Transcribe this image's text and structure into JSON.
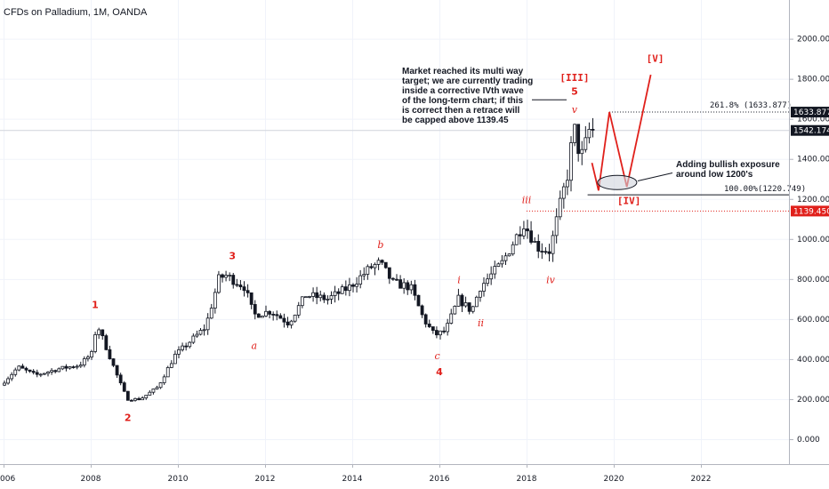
{
  "chart_data": {
    "type": "candlestick",
    "title": "CFDs on Palladium, 1M, OANDA",
    "ylim": [
      -250,
      2200
    ],
    "xlim": [
      2006,
      2025.9
    ],
    "y_ticks": [
      "2000.000",
      "1800.000",
      "1600.000",
      "1400.000",
      "1200.000",
      "1000.000",
      "800.000",
      "600.000",
      "400.000",
      "200.000",
      "0.000"
    ],
    "y_tick_values": [
      2000,
      1800,
      1600,
      1400,
      1200,
      1000,
      800,
      600,
      400,
      200,
      0
    ],
    "x_ticks": [
      "006",
      "2008",
      "2010",
      "2012",
      "2014",
      "2016",
      "2018",
      "2020",
      "2022"
    ],
    "x_tick_values": [
      2006,
      2008,
      2010,
      2012,
      2014,
      2016,
      2018,
      2020,
      2022
    ],
    "price_path": [
      [
        2006.0,
        270
      ],
      [
        2006.4,
        360
      ],
      [
        2006.8,
        320
      ],
      [
        2007.3,
        350
      ],
      [
        2007.8,
        370
      ],
      [
        2008.1,
        430
      ],
      [
        2008.2,
        580
      ],
      [
        2008.45,
        440
      ],
      [
        2008.7,
        300
      ],
      [
        2008.9,
        200
      ],
      [
        2009.2,
        200
      ],
      [
        2009.6,
        260
      ],
      [
        2010.0,
        420
      ],
      [
        2010.4,
        500
      ],
      [
        2010.7,
        560
      ],
      [
        2011.0,
        800
      ],
      [
        2011.15,
        820
      ],
      [
        2011.6,
        760
      ],
      [
        2011.8,
        620
      ],
      [
        2012.2,
        640
      ],
      [
        2012.6,
        580
      ],
      [
        2013.0,
        720
      ],
      [
        2013.5,
        700
      ],
      [
        2014.0,
        760
      ],
      [
        2014.5,
        860
      ],
      [
        2014.7,
        880
      ],
      [
        2015.0,
        780
      ],
      [
        2015.4,
        760
      ],
      [
        2015.7,
        600
      ],
      [
        2015.95,
        520
      ],
      [
        2016.2,
        540
      ],
      [
        2016.5,
        700
      ],
      [
        2016.8,
        640
      ],
      [
        2017.0,
        760
      ],
      [
        2017.5,
        880
      ],
      [
        2018.0,
        1080
      ],
      [
        2018.3,
        960
      ],
      [
        2018.6,
        940
      ],
      [
        2018.8,
        1140
      ],
      [
        2019.0,
        1320
      ],
      [
        2019.15,
        1560
      ],
      [
        2019.3,
        1400
      ],
      [
        2019.4,
        1460
      ],
      [
        2019.5,
        1542.174
      ]
    ],
    "projection": [
      [
        2019.5,
        1380
      ],
      [
        2019.65,
        1242
      ],
      [
        2019.9,
        1634
      ],
      [
        2020.3,
        1260
      ],
      [
        2020.85,
        1820
      ]
    ],
    "levels": [
      {
        "label": "261.8% (1633.877)",
        "value": 1633.877
      },
      {
        "label": "100.00%(1220.749)",
        "value": 1220.749
      },
      {
        "value": 1139.45
      },
      {
        "value": 1542.174
      }
    ],
    "price_badges": [
      {
        "text": "1633.877",
        "value": 1633.877,
        "color": "#131722"
      },
      {
        "text": "1542.174",
        "value": 1542.174,
        "color": "#131722"
      },
      {
        "text": "1139.450",
        "value": 1139.45,
        "color": "#e0201b"
      }
    ],
    "wave_labels": [
      {
        "text": "1",
        "x": 2008.1,
        "y": 655,
        "style": "red"
      },
      {
        "text": "2",
        "x": 2008.85,
        "y": 90,
        "style": "red"
      },
      {
        "text": "3",
        "x": 2011.25,
        "y": 900,
        "style": "red"
      },
      {
        "text": "4",
        "x": 2016.0,
        "y": 320,
        "style": "red"
      },
      {
        "text": "5",
        "x": 2019.1,
        "y": 1720,
        "style": "red"
      },
      {
        "text": "a",
        "x": 2011.75,
        "y": 450,
        "style": "small"
      },
      {
        "text": "b",
        "x": 2014.65,
        "y": 955,
        "style": "small"
      },
      {
        "text": "c",
        "x": 2015.95,
        "y": 400,
        "style": "small"
      },
      {
        "text": "i",
        "x": 2016.45,
        "y": 780,
        "style": "small"
      },
      {
        "text": "ii",
        "x": 2016.95,
        "y": 565,
        "style": "small"
      },
      {
        "text": "iii",
        "x": 2018.0,
        "y": 1180,
        "style": "small"
      },
      {
        "text": "iv",
        "x": 2018.55,
        "y": 780,
        "style": "small"
      },
      {
        "text": "v",
        "x": 2019.1,
        "y": 1630,
        "style": "small"
      },
      {
        "text": "[III]",
        "x": 2019.1,
        "y": 1790,
        "style": "big"
      },
      {
        "text": "[IV]",
        "x": 2020.35,
        "y": 1175,
        "style": "big"
      },
      {
        "text": "[V]",
        "x": 2020.95,
        "y": 1885,
        "style": "big"
      }
    ],
    "annotations": [
      {
        "lines": [
          "Market reached its multi way",
          "target; we are currently trading",
          "inside a corrective IVth wave",
          "of the long-term chart; if this",
          "is correct then a retrace will",
          "be capped above 1139.45"
        ]
      },
      {
        "lines": [
          "Adding bullish exposure",
          "around low 1200's"
        ]
      }
    ]
  }
}
